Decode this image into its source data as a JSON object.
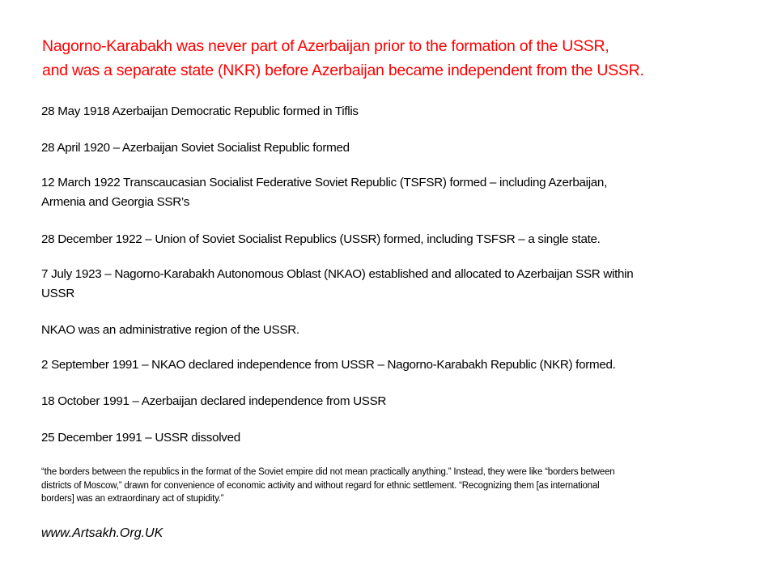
{
  "heading": {
    "lines": [
      "Nagorno-Karabakh was never part of Azerbaijan prior to the formation of the USSR,",
      "and was a separate state (NKR) before Azerbaijan became independent from the USSR."
    ],
    "color": "#ff0000"
  },
  "timeline": [
    {
      "lines": [
        "28 May 1918 Azerbaijan Democratic Republic formed in Tiflis"
      ]
    },
    {
      "lines": [
        "28 April 1920 – Azerbaijan Soviet Socialist Republic formed"
      ]
    },
    {
      "lines": [
        "12 March 1922 Transcaucasian Socialist Federative Soviet Republic (TSFSR) formed – including Azerbaijan,",
        "Armenia and Georgia SSR’s"
      ]
    },
    {
      "lines": [
        "28 December 1922 – Union of Soviet Socialist Republics (USSR) formed, including TSFSR – a single state."
      ]
    },
    {
      "lines": [
        "7 July 1923 – Nagorno-Karabakh Autonomous Oblast (NKAO) established and allocated to Azerbaijan SSR within",
        "USSR"
      ]
    },
    {
      "lines": [
        "NKAO was an administrative region of the USSR."
      ]
    },
    {
      "lines": [
        "2 September 1991 – NKAO declared independence from USSR – Nagorno-Karabakh Republic (NKR) formed."
      ]
    },
    {
      "lines": [
        "18 October 1991 – Azerbaijan declared independence from USSR"
      ]
    },
    {
      "lines": [
        "25 December 1991 – USSR dissolved"
      ]
    }
  ],
  "quote": {
    "lines": [
      "“the borders between the republics in the format of the Soviet empire did not mean practically anything.” Instead, they were like “borders between",
      "districts of Moscow,” drawn for convenience of economic activity and without regard for ethnic settlement.  “Recognizing them [as international",
      "borders] was an extraordinary act of stupidity.”"
    ]
  },
  "website": "www.Artsakh.Org.UK"
}
